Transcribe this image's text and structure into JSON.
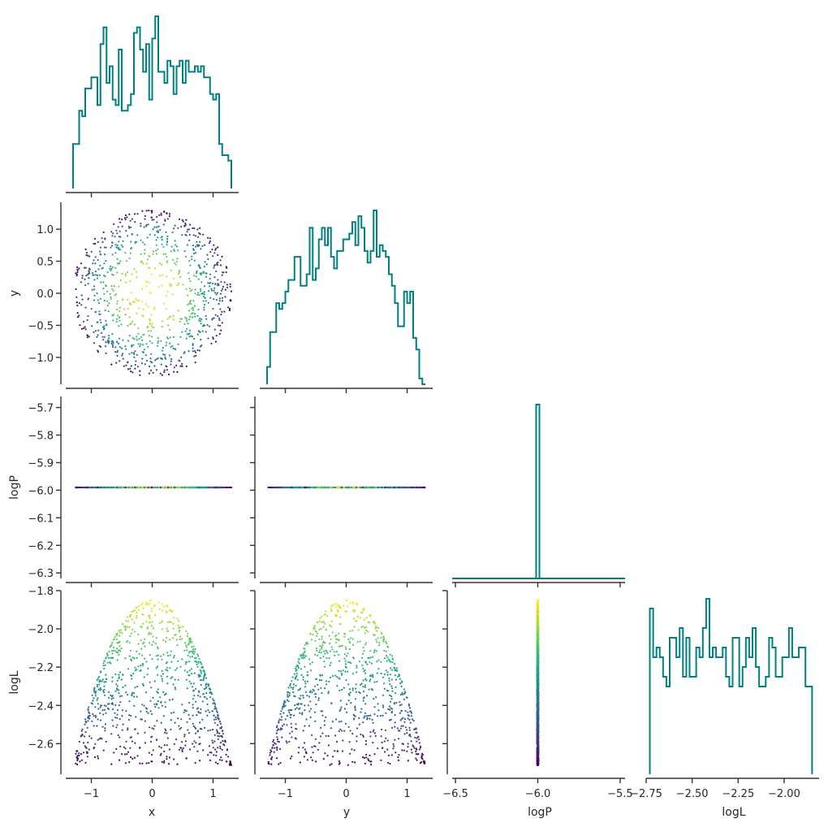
{
  "chart_data": {
    "type": "scatter",
    "variables": [
      "x",
      "y",
      "logP",
      "logL"
    ],
    "diag_color": "#008080",
    "colormap": "viridis",
    "color_by": "logL",
    "panels": {
      "diag_x": {
        "type": "histogram",
        "variable": "x",
        "xlim": [
          -1.42,
          1.42
        ],
        "bin_edges": [
          -1.3,
          -1.25,
          -1.2,
          -1.15,
          -1.1,
          -1.05,
          -1.0,
          -0.95,
          -0.9,
          -0.85,
          -0.8,
          -0.75,
          -0.7,
          -0.65,
          -0.6,
          -0.55,
          -0.5,
          -0.45,
          -0.4,
          -0.35,
          -0.3,
          -0.25,
          -0.2,
          -0.15,
          -0.1,
          -0.05,
          0.0,
          0.05,
          0.1,
          0.15,
          0.2,
          0.25,
          0.3,
          0.35,
          0.4,
          0.45,
          0.5,
          0.55,
          0.6,
          0.65,
          0.7,
          0.75,
          0.8,
          0.85,
          0.9,
          0.95,
          1.0,
          1.05,
          1.1,
          1.15,
          1.2,
          1.25,
          1.3
        ],
        "counts": [
          8,
          8,
          14,
          13,
          18,
          18,
          20,
          20,
          15,
          26,
          29,
          19,
          22,
          16,
          15,
          25,
          14,
          14,
          15,
          17,
          28,
          29,
          25,
          21,
          26,
          16,
          27,
          31,
          21,
          21,
          19,
          23,
          22,
          17,
          22,
          23,
          19,
          23,
          21,
          21,
          22,
          21,
          22,
          20,
          20,
          17,
          16,
          17,
          8,
          6,
          6,
          5
        ]
      },
      "diag_y": {
        "type": "histogram",
        "variable": "y",
        "xlim": [
          -1.42,
          1.42
        ],
        "bin_edges": [
          -1.3,
          -1.25,
          -1.2,
          -1.15,
          -1.1,
          -1.05,
          -1.0,
          -0.95,
          -0.9,
          -0.85,
          -0.8,
          -0.75,
          -0.7,
          -0.65,
          -0.6,
          -0.55,
          -0.5,
          -0.45,
          -0.4,
          -0.35,
          -0.3,
          -0.25,
          -0.2,
          -0.15,
          -0.1,
          -0.05,
          0.0,
          0.05,
          0.1,
          0.15,
          0.2,
          0.25,
          0.3,
          0.35,
          0.4,
          0.45,
          0.5,
          0.55,
          0.6,
          0.65,
          0.7,
          0.75,
          0.8,
          0.85,
          0.9,
          0.95,
          1.0,
          1.05,
          1.1,
          1.15,
          1.2,
          1.25,
          1.3
        ],
        "counts": [
          3,
          9,
          9,
          14,
          13,
          14,
          16,
          18,
          18,
          22,
          22,
          17,
          17,
          19,
          27,
          18,
          20,
          25,
          27,
          24,
          27,
          22,
          20,
          23,
          23,
          25,
          25,
          26,
          28,
          24,
          29,
          27,
          23,
          21,
          23,
          30,
          22,
          24,
          23,
          22,
          19,
          17,
          14,
          10,
          10,
          16,
          14,
          16,
          8,
          6,
          1,
          0
        ]
      },
      "diag_logP": {
        "type": "histogram",
        "variable": "logP",
        "xlim": [
          -6.52,
          -5.47
        ],
        "bin_edges": [
          -6.01,
          -5.99
        ],
        "counts": [
          1
        ]
      },
      "diag_logL": {
        "type": "histogram",
        "variable": "logL",
        "xlim": [
          -2.75,
          -1.81
        ],
        "bin_edges": [
          -2.73,
          -2.712,
          -2.694,
          -2.676,
          -2.658,
          -2.64,
          -2.622,
          -2.604,
          -2.586,
          -2.568,
          -2.55,
          -2.532,
          -2.514,
          -2.496,
          -2.478,
          -2.46,
          -2.442,
          -2.424,
          -2.406,
          -2.388,
          -2.37,
          -2.352,
          -2.334,
          -2.316,
          -2.298,
          -2.28,
          -2.262,
          -2.244,
          -2.226,
          -2.208,
          -2.19,
          -2.172,
          -2.154,
          -2.136,
          -2.118,
          -2.1,
          -2.082,
          -2.064,
          -2.046,
          -2.028,
          -2.01,
          -1.992,
          -1.974,
          -1.956,
          -1.938,
          -1.92,
          -1.902,
          -1.884,
          -1.866,
          -1.848
        ],
        "counts": [
          17,
          12,
          13,
          12,
          10,
          9,
          14,
          14,
          12,
          15,
          10,
          14,
          10,
          10,
          13,
          12,
          15,
          18,
          12,
          13,
          12,
          12,
          13,
          10,
          9,
          14,
          14,
          9,
          11,
          14,
          12,
          15,
          11,
          9,
          9,
          10,
          14,
          13,
          10,
          10,
          12,
          12,
          15,
          12,
          12,
          13,
          13,
          9,
          9
        ]
      },
      "offdiag": [
        {
          "x": "x",
          "y": "y",
          "xlim": [
            -1.42,
            1.42
          ],
          "ylim": [
            -1.42,
            1.42
          ],
          "shape": "disk of radius 1.3, yellow at center, purple at rim"
        },
        {
          "x": "x",
          "y": "logP",
          "xlim": [
            -1.42,
            1.42
          ],
          "ylim": [
            -6.32,
            -5.66
          ],
          "shape": "horizontal band at -5.99"
        },
        {
          "x": "y",
          "y": "logP",
          "xlim": [
            -1.42,
            1.42
          ],
          "ylim": [
            -6.32,
            -5.66
          ],
          "shape": "horizontal band at -5.99"
        },
        {
          "x": "x",
          "y": "logL",
          "xlim": [
            -1.42,
            1.42
          ],
          "ylim": [
            -2.76,
            -1.8
          ],
          "shape": "parabola logL = -1.85 - 0.51*x^2 with fill below"
        },
        {
          "x": "y",
          "y": "logL",
          "xlim": [
            -1.42,
            1.42
          ],
          "ylim": [
            -2.76,
            -1.8
          ],
          "shape": "parabola logL = -1.85 - 0.51*y^2 with fill below"
        },
        {
          "x": "logP",
          "y": "logL",
          "xlim": [
            -6.52,
            -5.47
          ],
          "ylim": [
            -2.76,
            -1.8
          ],
          "shape": "vertical line at -6.0"
        }
      ]
    },
    "ticks": {
      "x": [
        "−1",
        "0",
        "1"
      ],
      "y_row": [
        "1.0",
        "0.5",
        "0.0",
        "−0.5",
        "−1.0"
      ],
      "logP_row": [
        "−5.7",
        "−5.8",
        "−5.9",
        "−6.0",
        "−6.1",
        "−6.2",
        "−6.3"
      ],
      "logL_row": [
        "−1.8",
        "−2.0",
        "−2.2",
        "−2.4",
        "−2.6"
      ],
      "logP_col": [
        "−6.5",
        "−6.0",
        "−5.5"
      ],
      "logL_col": [
        "−2.75",
        "−2.50",
        "−2.25",
        "−2.00"
      ]
    },
    "labels": {
      "xlabels": [
        "x",
        "y",
        "logP",
        "logL"
      ],
      "ylabels": [
        "y",
        "logP",
        "logL"
      ]
    }
  }
}
